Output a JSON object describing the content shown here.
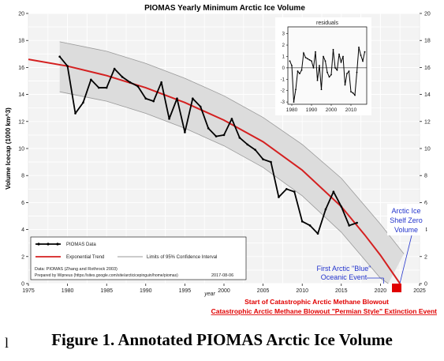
{
  "chart_data": {
    "type": "line",
    "title": "PIOMAS Yearly Minimum Arctic Ice Volume",
    "ylabel": "Volume Icecap (1000 km^3)",
    "xlabel": "year",
    "xlim": [
      1975,
      2025
    ],
    "ylim": [
      0,
      20
    ],
    "x_ticks": [
      "1975",
      "1980",
      "1985",
      "1990",
      "1995",
      "2000",
      "2005",
      "2010",
      "2015",
      "2020",
      "2025"
    ],
    "y_ticks": [
      "0",
      "2",
      "4",
      "6",
      "8",
      "10",
      "12",
      "14",
      "16",
      "18",
      "20"
    ],
    "grid": true,
    "series": [
      {
        "name": "PIOMAS Data",
        "color": "#000000",
        "x": [
          1979,
          1980,
          1981,
          1982,
          1983,
          1984,
          1985,
          1986,
          1987,
          1988,
          1989,
          1990,
          1991,
          1992,
          1993,
          1994,
          1995,
          1996,
          1997,
          1998,
          1999,
          2000,
          2001,
          2002,
          2003,
          2004,
          2005,
          2006,
          2007,
          2008,
          2009,
          2010,
          2011,
          2012,
          2013,
          2014,
          2015,
          2016,
          2017
        ],
        "values": [
          16.8,
          16.1,
          12.6,
          13.4,
          15.1,
          14.5,
          14.5,
          15.9,
          15.3,
          14.9,
          14.6,
          13.7,
          13.5,
          14.9,
          12.2,
          13.7,
          11.2,
          13.7,
          13.1,
          11.5,
          10.9,
          11.0,
          12.2,
          10.8,
          10.3,
          9.9,
          9.2,
          9.0,
          6.4,
          7.0,
          6.8,
          4.6,
          4.3,
          3.7,
          5.5,
          6.8,
          5.7,
          4.3,
          4.5
        ]
      },
      {
        "name": "Exponential Trend",
        "color": "#d42020",
        "x": [
          1975,
          1980,
          1985,
          1990,
          1995,
          2000,
          2005,
          2010,
          2015,
          2018,
          2020,
          2022.5
        ],
        "values": [
          16.6,
          16.1,
          15.4,
          14.5,
          13.4,
          12.1,
          10.5,
          8.4,
          5.7,
          3.6,
          2.1,
          0
        ]
      },
      {
        "name": "Limits of 95% Confidence Interval",
        "color": "#9a9a9a",
        "upper": {
          "x": [
            1979,
            1985,
            1990,
            1995,
            2000,
            2005,
            2010,
            2015,
            2020,
            2023
          ],
          "values": [
            17.9,
            17.2,
            16.3,
            15.2,
            13.9,
            12.3,
            10.3,
            7.8,
            4.4,
            2.2
          ]
        },
        "lower": {
          "x": [
            1979,
            1985,
            1990,
            1995,
            2000,
            2005,
            2010,
            2015,
            2020,
            2021
          ],
          "values": [
            14.2,
            13.5,
            12.6,
            11.5,
            10.2,
            8.6,
            6.5,
            3.8,
            0.4,
            0
          ]
        }
      }
    ],
    "inset": {
      "title": "residuals",
      "xlim": [
        1978,
        2018
      ],
      "ylim": [
        -3.2,
        3.6
      ],
      "x_ticks": [
        "1980",
        "1990",
        "2000",
        "2010"
      ],
      "y_ticks": [
        "-3",
        "-2",
        "-1",
        "0",
        "1",
        "2",
        "3"
      ],
      "x": [
        1979,
        1980,
        1981,
        1982,
        1983,
        1984,
        1985,
        1986,
        1987,
        1988,
        1989,
        1990,
        1991,
        1992,
        1993,
        1994,
        1995,
        1996,
        1997,
        1998,
        1999,
        2000,
        2001,
        2002,
        2003,
        2004,
        2005,
        2006,
        2007,
        2008,
        2009,
        2010,
        2011,
        2012,
        2013,
        2014,
        2015,
        2016,
        2017
      ],
      "values": [
        0.6,
        0.2,
        -3.0,
        -1.9,
        -0.3,
        -0.5,
        -0.2,
        1.3,
        0.9,
        0.8,
        0.7,
        0.6,
        0.0,
        1.4,
        -1.1,
        0.2,
        -1.9,
        1.0,
        0.6,
        -0.4,
        -0.8,
        -0.6,
        1.6,
        0.0,
        -0.2,
        1.2,
        0.5,
        1.0,
        -1.5,
        -0.5,
        -0.3,
        -2.1,
        -2.2,
        -2.4,
        -0.4,
        1.8,
        1.1,
        0.6,
        1.4
      ]
    },
    "legend": {
      "placement": "bottom-left",
      "entries": [
        "PIOMAS Data",
        "Exponential Trend",
        "Limits of 95% Confidence Interval"
      ],
      "source_line": "Data: PIOMAS (Zhang and Rothrock 2003)",
      "prepared_line": "Prepared by Wipneus (https://sites.google.com/site/arcticicepinguin/home/piomas)",
      "date": "2017-08-06"
    },
    "annotations": {
      "zero_volume": [
        "Arctic Ice",
        "Shelf Zero",
        "Volume"
      ],
      "blue_event": [
        "First Arctic \"Blue\"",
        "Oceanic Event"
      ],
      "methane_blowout": "Start of Catastrophic Arctic Methane Blowout",
      "extinction_event": "Catastrophic Arctic Methane Blowout \"Permian Style\" Extinction Event",
      "blue_color": "#2233cc",
      "red_color": "#e00000"
    }
  },
  "caption": "Figure 1. Annotated PIOMAS Arctic Ice Volume",
  "corner_mark": "l"
}
